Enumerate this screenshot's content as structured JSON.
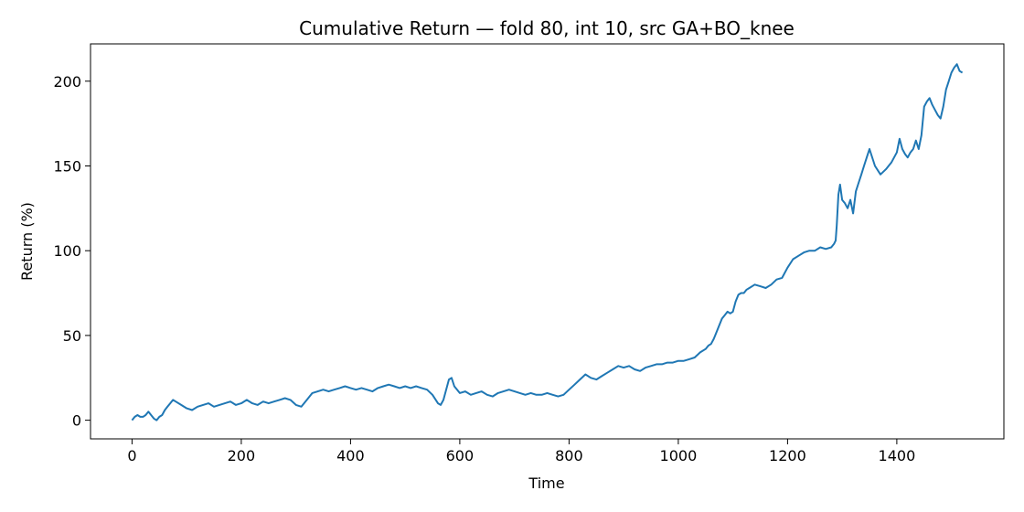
{
  "chart_data": {
    "type": "line",
    "title": "Cumulative Return — fold 80, int 10, src GA+BO_knee",
    "xlabel": "Time",
    "ylabel": "Return (%)",
    "xlim": [
      -76,
      1596
    ],
    "ylim": [
      -11,
      222
    ],
    "xticks": [
      0,
      200,
      400,
      600,
      800,
      1000,
      1200,
      1400
    ],
    "yticks": [
      0,
      50,
      100,
      150,
      200
    ],
    "grid": false,
    "line_color": "#1f77b4",
    "series": [
      {
        "x": [
          0,
          5,
          10,
          15,
          20,
          25,
          30,
          35,
          40,
          45,
          50,
          55,
          60,
          65,
          70,
          75,
          80,
          90,
          100,
          110,
          120,
          130,
          140,
          150,
          160,
          170,
          180,
          190,
          200,
          210,
          220,
          230,
          240,
          250,
          260,
          270,
          280,
          290,
          300,
          310,
          320,
          330,
          340,
          350,
          360,
          370,
          380,
          390,
          400,
          410,
          420,
          430,
          440,
          450,
          460,
          470,
          480,
          490,
          500,
          510,
          520,
          530,
          540,
          550,
          560,
          565,
          570,
          575,
          580,
          585,
          590,
          600,
          610,
          620,
          630,
          640,
          650,
          660,
          670,
          680,
          690,
          700,
          710,
          720,
          730,
          740,
          750,
          760,
          770,
          780,
          790,
          800,
          810,
          820,
          830,
          840,
          850,
          860,
          870,
          880,
          890,
          900,
          910,
          920,
          930,
          940,
          950,
          960,
          970,
          980,
          990,
          1000,
          1010,
          1020,
          1030,
          1040,
          1050,
          1055,
          1060,
          1065,
          1070,
          1075,
          1080,
          1085,
          1090,
          1095,
          1100,
          1105,
          1110,
          1115,
          1120,
          1125,
          1130,
          1140,
          1150,
          1160,
          1170,
          1180,
          1190,
          1200,
          1210,
          1220,
          1230,
          1240,
          1250,
          1260,
          1270,
          1280,
          1285,
          1288,
          1290,
          1293,
          1296,
          1300,
          1305,
          1310,
          1315,
          1320,
          1325,
          1330,
          1335,
          1340,
          1345,
          1350,
          1360,
          1370,
          1380,
          1390,
          1400,
          1405,
          1410,
          1415,
          1420,
          1425,
          1430,
          1435,
          1440,
          1445,
          1450,
          1455,
          1460,
          1465,
          1470,
          1475,
          1480,
          1485,
          1490,
          1495,
          1500,
          1505,
          1510,
          1515,
          1520
        ],
        "y": [
          0,
          2,
          3,
          2,
          2,
          3,
          5,
          3,
          1,
          0,
          2,
          3,
          6,
          8,
          10,
          12,
          11,
          9,
          7,
          6,
          8,
          9,
          10,
          8,
          9,
          10,
          11,
          9,
          10,
          12,
          10,
          9,
          11,
          10,
          11,
          12,
          13,
          12,
          9,
          8,
          12,
          16,
          17,
          18,
          17,
          18,
          19,
          20,
          19,
          18,
          19,
          18,
          17,
          19,
          20,
          21,
          20,
          19,
          20,
          19,
          20,
          19,
          18,
          15,
          10,
          9,
          12,
          18,
          24,
          25,
          20,
          16,
          17,
          15,
          16,
          17,
          15,
          14,
          16,
          17,
          18,
          17,
          16,
          15,
          16,
          15,
          15,
          16,
          15,
          14,
          15,
          18,
          21,
          24,
          27,
          25,
          24,
          26,
          28,
          30,
          32,
          31,
          32,
          30,
          29,
          31,
          32,
          33,
          33,
          34,
          34,
          35,
          35,
          36,
          37,
          40,
          42,
          44,
          45,
          48,
          52,
          56,
          60,
          62,
          64,
          63,
          64,
          70,
          74,
          75,
          75,
          77,
          78,
          80,
          79,
          78,
          80,
          83,
          84,
          90,
          95,
          97,
          99,
          100,
          100,
          102,
          101,
          102,
          104,
          106,
          115,
          133,
          139,
          130,
          128,
          125,
          130,
          122,
          135,
          140,
          145,
          150,
          155,
          160,
          150,
          145,
          148,
          152,
          158,
          166,
          160,
          157,
          155,
          158,
          160,
          165,
          160,
          168,
          185,
          188,
          190,
          186,
          183,
          180,
          178,
          185,
          195,
          200,
          205,
          208,
          210,
          206,
          205
        ]
      }
    ]
  }
}
